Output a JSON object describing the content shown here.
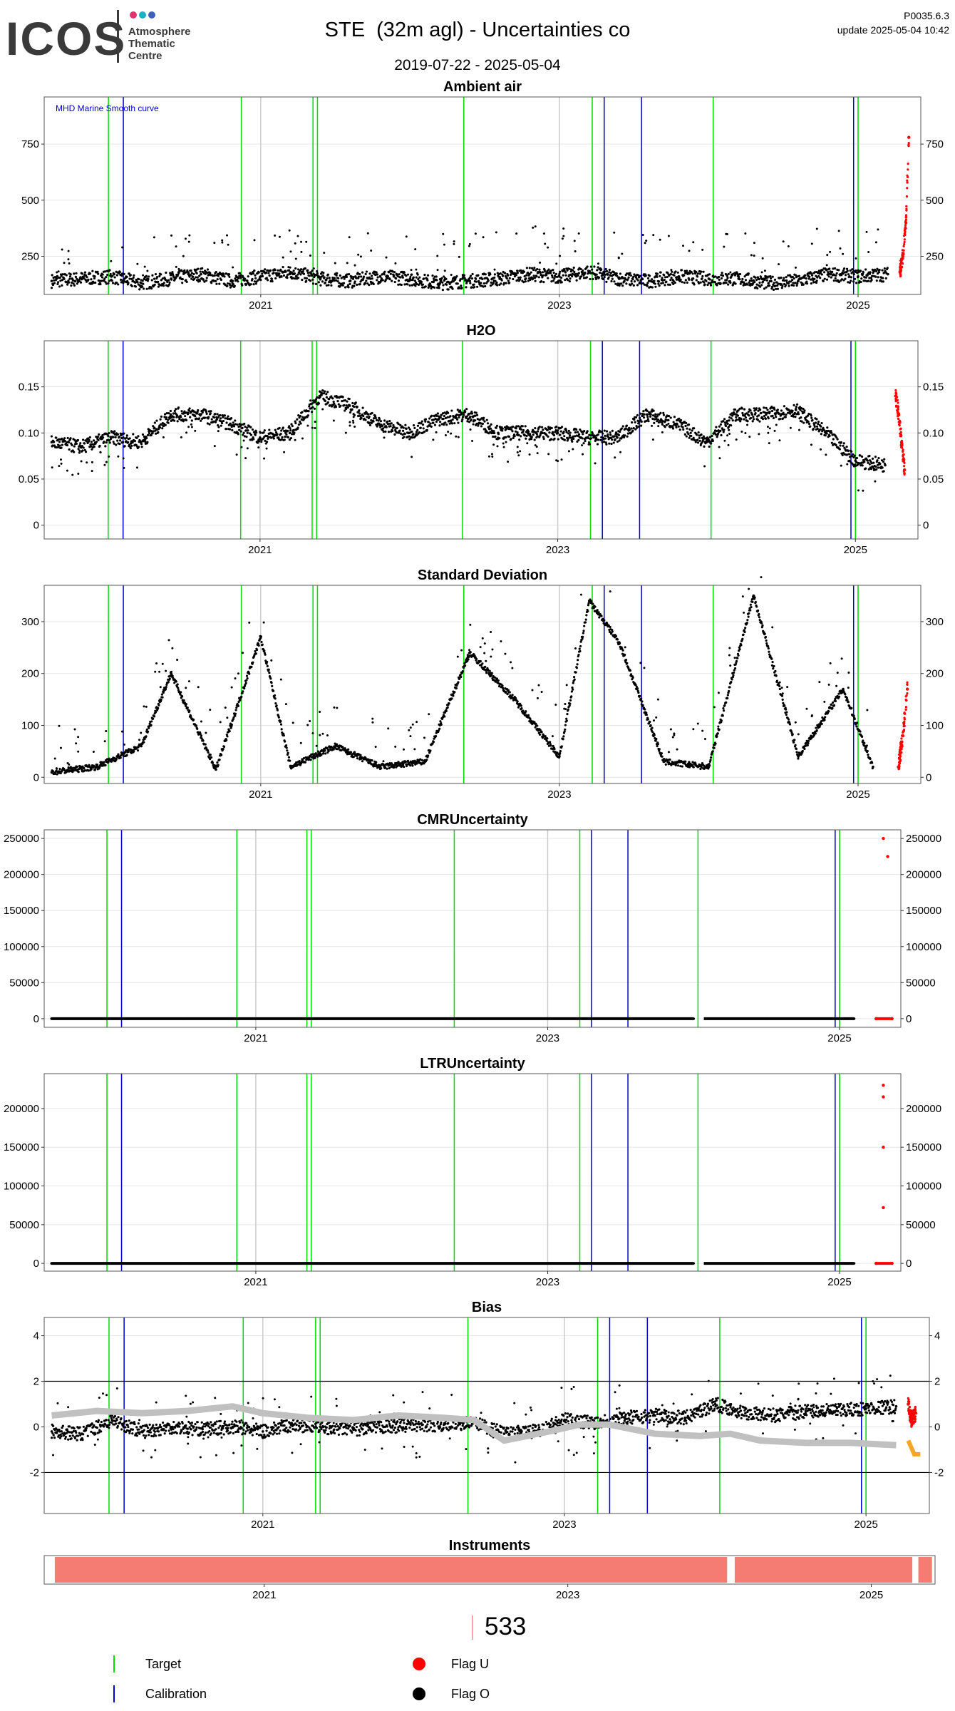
{
  "header": {
    "logo_text": "ICOS",
    "logo_subtitle": "Atmosphere\nThematic\nCentre",
    "title": "STE  (32m agl) - Uncertainties co",
    "date_range": "2019-07-22 - 2025-05-04",
    "version": "P0035.6.3",
    "update": "update  2025-05-04 10:42"
  },
  "colors": {
    "target": "#00dd00",
    "calibration": "#0000cc",
    "flag_u": "#ff0000",
    "flag_o": "#000000",
    "smooth_curve": "#c0c0c0",
    "orange": "#f5a623",
    "instrument": "#f47c72"
  },
  "chart_data": [
    {
      "type": "scatter",
      "title": "Ambient air",
      "annotation": "MHD Marine Smooth curve",
      "x_ticks": [
        "2021",
        "2023",
        "2025"
      ],
      "y_ticks": [
        250,
        500,
        750
      ],
      "ylim": [
        80,
        960
      ],
      "xlim": [
        2019.55,
        2025.42
      ],
      "grid": true,
      "series": [
        {
          "name": "Flag O",
          "x": [
            2019.6,
            2019.8,
            2020.0,
            2020.2,
            2020.4,
            2020.6,
            2020.8,
            2021.0,
            2021.2,
            2021.4,
            2021.6,
            2021.8,
            2022.0,
            2022.2,
            2022.4,
            2022.6,
            2022.8,
            2023.0,
            2023.2,
            2023.4,
            2023.6,
            2023.8,
            2024.0,
            2024.2,
            2024.4,
            2024.6,
            2024.8,
            2025.0,
            2025.2
          ],
          "y": [
            140,
            150,
            160,
            130,
            150,
            170,
            140,
            160,
            180,
            150,
            140,
            160,
            150,
            130,
            140,
            150,
            170,
            160,
            180,
            150,
            140,
            160,
            150,
            150,
            130,
            140,
            170,
            160,
            170
          ]
        },
        {
          "name": "Flag U",
          "x": [
            2025.28,
            2025.3,
            2025.32,
            2025.34
          ],
          "y": [
            180,
            250,
            400,
            780
          ]
        }
      ],
      "target_lines": [
        2019.98,
        2020.87,
        2021.35,
        2021.38,
        2022.36,
        2023.22,
        2024.03,
        2025.0
      ],
      "calibration_lines": [
        2020.08,
        2023.3,
        2023.55,
        2024.97
      ],
      "grey_lines": [
        2021.0,
        2023.0,
        2025.0
      ]
    },
    {
      "type": "scatter",
      "title": "H2O",
      "x_ticks": [
        "2021",
        "2023",
        "2025"
      ],
      "y_ticks": [
        0.0,
        0.05,
        0.1,
        0.15
      ],
      "ylim": [
        -0.015,
        0.2
      ],
      "xlim": [
        2019.55,
        2025.42
      ],
      "grid": true,
      "series": [
        {
          "name": "Flag O",
          "x": [
            2019.6,
            2019.8,
            2020.0,
            2020.2,
            2020.4,
            2020.6,
            2020.8,
            2021.0,
            2021.2,
            2021.4,
            2021.6,
            2021.8,
            2022.0,
            2022.2,
            2022.4,
            2022.6,
            2022.8,
            2023.0,
            2023.2,
            2023.4,
            2023.6,
            2023.8,
            2024.0,
            2024.2,
            2024.4,
            2024.6,
            2024.8,
            2025.0,
            2025.2
          ],
          "y": [
            0.09,
            0.085,
            0.095,
            0.09,
            0.12,
            0.12,
            0.11,
            0.095,
            0.1,
            0.14,
            0.13,
            0.11,
            0.1,
            0.115,
            0.12,
            0.1,
            0.1,
            0.1,
            0.095,
            0.095,
            0.12,
            0.11,
            0.09,
            0.12,
            0.12,
            0.125,
            0.1,
            0.07,
            0.065
          ]
        },
        {
          "name": "Flag U",
          "x": [
            2025.27,
            2025.29,
            2025.31,
            2025.33
          ],
          "y": [
            0.14,
            0.12,
            0.09,
            0.06
          ]
        }
      ],
      "target_lines": [
        2019.98,
        2020.87,
        2021.35,
        2021.38,
        2022.36,
        2023.22,
        2024.03,
        2025.0
      ],
      "calibration_lines": [
        2020.08,
        2023.3,
        2023.55,
        2024.97
      ],
      "grey_lines": [
        2021.0,
        2023.0,
        2025.0
      ]
    },
    {
      "type": "scatter",
      "title": "Standard Deviation",
      "x_ticks": [
        "2021",
        "2023",
        "2025"
      ],
      "y_ticks": [
        0,
        100,
        200,
        300
      ],
      "ylim": [
        -12,
        370
      ],
      "xlim": [
        2019.55,
        2025.42
      ],
      "grid": true,
      "series": [
        {
          "name": "Flag O",
          "x": [
            2019.6,
            2019.9,
            2020.2,
            2020.4,
            2020.7,
            2021.0,
            2021.2,
            2021.5,
            2021.8,
            2022.1,
            2022.4,
            2022.7,
            2023.0,
            2023.2,
            2023.4,
            2023.7,
            2024.0,
            2024.3,
            2024.6,
            2024.9,
            2025.1
          ],
          "y": [
            10,
            20,
            60,
            200,
            15,
            270,
            20,
            60,
            20,
            30,
            240,
            150,
            40,
            340,
            260,
            30,
            20,
            350,
            40,
            170,
            20
          ]
        },
        {
          "name": "Flag U",
          "x": [
            2025.27,
            2025.3,
            2025.33
          ],
          "y": [
            20,
            80,
            170
          ]
        }
      ],
      "target_lines": [
        2019.98,
        2020.87,
        2021.35,
        2021.38,
        2022.36,
        2023.22,
        2024.03,
        2025.0
      ],
      "calibration_lines": [
        2020.08,
        2023.3,
        2023.55,
        2024.97
      ],
      "grey_lines": [
        2021.0,
        2023.0,
        2025.0
      ]
    },
    {
      "type": "scatter",
      "title": "CMRUncertainty",
      "x_ticks": [
        "2021",
        "2023",
        "2025"
      ],
      "y_ticks": [
        0,
        50000,
        100000,
        150000,
        200000,
        250000
      ],
      "ylim": [
        -12000,
        262000
      ],
      "xlim": [
        2019.55,
        2025.42
      ],
      "grid": true,
      "series": [
        {
          "name": "Flag O",
          "x": [
            2019.6,
            2020.5,
            2021.5,
            2022.5,
            2023.5,
            2024.0,
            2024.5,
            2025.1
          ],
          "y": [
            0,
            0,
            0,
            0,
            0,
            0,
            0,
            0
          ]
        },
        {
          "name": "Flag U",
          "x": [
            2025.25,
            2025.3,
            2025.33,
            2025.36
          ],
          "y": [
            0,
            250000,
            225000,
            0
          ]
        }
      ],
      "target_lines": [
        2019.98,
        2020.87,
        2021.35,
        2021.38,
        2022.36,
        2023.22,
        2024.03,
        2025.0
      ],
      "calibration_lines": [
        2020.08,
        2023.3,
        2023.55,
        2024.97
      ],
      "grey_lines": [
        2021.0,
        2023.0,
        2025.0
      ]
    },
    {
      "type": "scatter",
      "title": "LTRUncertainty",
      "x_ticks": [
        "2021",
        "2023",
        "2025"
      ],
      "y_ticks": [
        0,
        50000,
        100000,
        150000,
        200000
      ],
      "ylim": [
        -10000,
        245000
      ],
      "xlim": [
        2019.55,
        2025.42
      ],
      "grid": true,
      "series": [
        {
          "name": "Flag O",
          "x": [
            2019.6,
            2020.5,
            2021.5,
            2022.5,
            2023.5,
            2024.0,
            2024.5,
            2025.1
          ],
          "y": [
            0,
            0,
            0,
            0,
            0,
            0,
            0,
            0
          ]
        },
        {
          "name": "Flag U",
          "x": [
            2025.25,
            2025.3,
            2025.3,
            2025.3,
            2025.3,
            2025.36
          ],
          "y": [
            0,
            230000,
            215000,
            150000,
            72000,
            0
          ]
        }
      ],
      "target_lines": [
        2019.98,
        2020.87,
        2021.35,
        2021.38,
        2022.36,
        2023.22,
        2024.03,
        2025.0
      ],
      "calibration_lines": [
        2020.08,
        2023.3,
        2023.55,
        2024.97
      ],
      "grey_lines": [
        2021.0,
        2023.0,
        2025.0
      ]
    },
    {
      "type": "scatter",
      "title": "Bias",
      "x_ticks": [
        "2021",
        "2023",
        "2025"
      ],
      "y_ticks": [
        -2,
        0,
        2,
        4
      ],
      "ylim": [
        -3.8,
        4.8
      ],
      "xlim": [
        2019.55,
        2025.42
      ],
      "grid": true,
      "hlines": [
        -2,
        2
      ],
      "series": [
        {
          "name": "Flag O",
          "x": [
            2019.6,
            2019.8,
            2020.0,
            2020.2,
            2020.4,
            2020.6,
            2020.8,
            2021.0,
            2021.2,
            2021.4,
            2021.6,
            2021.8,
            2022.0,
            2022.2,
            2022.4,
            2022.6,
            2022.8,
            2023.0,
            2023.2,
            2023.4,
            2023.6,
            2023.8,
            2024.0,
            2024.2,
            2024.4,
            2024.6,
            2024.8,
            2025.0,
            2025.2
          ],
          "y": [
            -0.2,
            -0.3,
            0.3,
            -0.2,
            0.0,
            -0.1,
            0.0,
            -0.2,
            0.1,
            0.0,
            -0.1,
            0.0,
            0.1,
            0.1,
            0.2,
            -0.3,
            -0.2,
            0.3,
            0.2,
            0.4,
            0.5,
            0.4,
            1.0,
            0.6,
            0.5,
            0.7,
            0.7,
            0.8,
            0.9
          ]
        },
        {
          "name": "Smooth curve",
          "x": [
            2019.6,
            2019.9,
            2020.2,
            2020.5,
            2020.8,
            2021.0,
            2021.3,
            2021.6,
            2021.9,
            2022.2,
            2022.4,
            2022.6,
            2022.9,
            2023.1,
            2023.3,
            2023.6,
            2023.9,
            2024.1,
            2024.3,
            2024.6,
            2024.9,
            2025.2
          ],
          "y": [
            0.5,
            0.7,
            0.6,
            0.7,
            0.9,
            0.6,
            0.4,
            0.3,
            0.5,
            0.4,
            0.3,
            -0.6,
            -0.2,
            0.1,
            0.1,
            -0.3,
            -0.4,
            -0.3,
            -0.6,
            -0.7,
            -0.7,
            -0.8
          ]
        },
        {
          "name": "Flag U",
          "x": [
            2025.28,
            2025.3,
            2025.33
          ],
          "y": [
            1.0,
            0.3,
            0.6
          ]
        },
        {
          "name": "Orange",
          "x": [
            2025.28,
            2025.32,
            2025.36
          ],
          "y": [
            -0.6,
            -1.2,
            -1.2
          ]
        }
      ],
      "target_lines": [
        2019.98,
        2020.87,
        2021.35,
        2021.38,
        2022.36,
        2023.22,
        2024.03,
        2025.0
      ],
      "calibration_lines": [
        2020.08,
        2023.3,
        2023.55,
        2024.97
      ],
      "grey_lines": [
        2021.0,
        2023.0,
        2025.0
      ]
    },
    {
      "type": "bar",
      "title": "Instruments",
      "x_ticks": [
        "2021",
        "2023",
        "2025"
      ],
      "xlim": [
        2019.55,
        2025.42
      ],
      "segments": [
        [
          2019.62,
          2024.05
        ],
        [
          2024.1,
          2025.27
        ],
        [
          2025.31,
          2025.4
        ]
      ]
    }
  ],
  "instrument_count": "533",
  "legend": {
    "target": "Target",
    "calibration": "Calibration",
    "flag_u": "Flag U",
    "flag_o": "Flag O"
  }
}
